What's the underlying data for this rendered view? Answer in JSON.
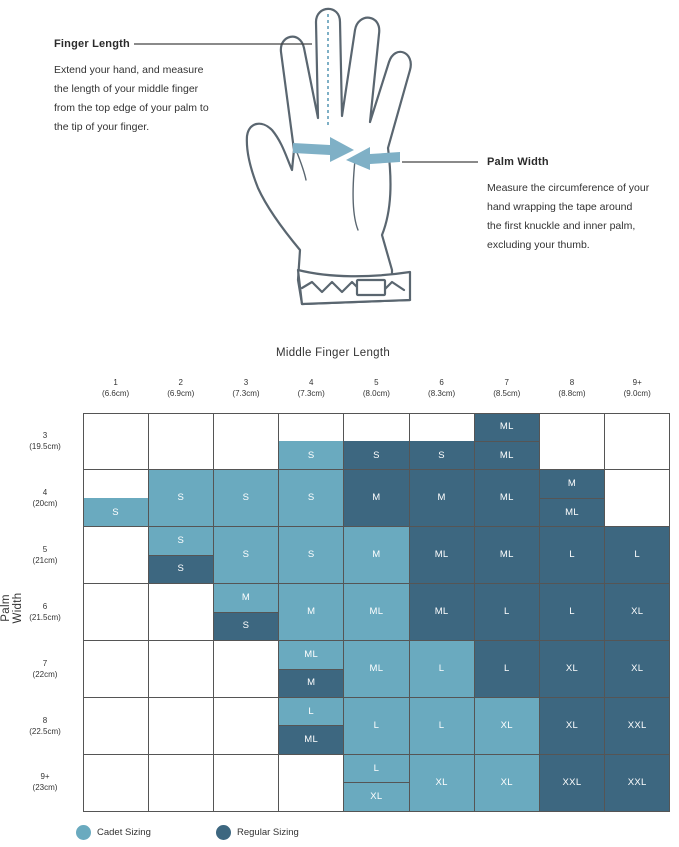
{
  "colors": {
    "cadet": "#6aaabf",
    "regular": "#3d6780",
    "grid": "#555555",
    "arrow": "#7fb0c6"
  },
  "diagram": {
    "finger_length": {
      "title": "Finger Length",
      "lines": [
        "Extend your hand, and measure",
        "the length of your middle finger",
        "from the top edge of your palm to",
        "the tip of your finger."
      ]
    },
    "palm_width": {
      "title": "Palm Width",
      "lines": [
        "Measure the circumference of your",
        "hand wrapping the tape around",
        "the first knuckle and inner palm,",
        "excluding your thumb."
      ]
    }
  },
  "chart_data": {
    "type": "table",
    "x_axis_title": "Middle Finger Length",
    "y_axis_title": "Palm Width",
    "columns": [
      {
        "size": "1",
        "cm": "(6.6cm)"
      },
      {
        "size": "2",
        "cm": "(6.9cm)"
      },
      {
        "size": "3",
        "cm": "(7.3cm)"
      },
      {
        "size": "4",
        "cm": "(7.3cm)"
      },
      {
        "size": "5",
        "cm": "(8.0cm)"
      },
      {
        "size": "6",
        "cm": "(8.3cm)"
      },
      {
        "size": "7",
        "cm": "(8.5cm)"
      },
      {
        "size": "8",
        "cm": "(8.8cm)"
      },
      {
        "size": "9+",
        "cm": "(9.0cm)"
      }
    ],
    "rows": [
      {
        "size": "3",
        "cm": "(19.5cm)"
      },
      {
        "size": "4",
        "cm": "(20cm)"
      },
      {
        "size": "5",
        "cm": "(21cm)"
      },
      {
        "size": "6",
        "cm": "(21.5cm)"
      },
      {
        "size": "7",
        "cm": "(22cm)"
      },
      {
        "size": "8",
        "cm": "(22.5cm)"
      },
      {
        "size": "9+",
        "cm": "(23cm)"
      }
    ],
    "cells": [
      [
        null,
        null,
        null,
        {
          "bottom": {
            "label": "S",
            "type": "cadet"
          }
        },
        {
          "bottom": {
            "label": "S",
            "type": "regular"
          }
        },
        {
          "bottom": {
            "label": "S",
            "type": "regular"
          }
        },
        {
          "top": {
            "label": "ML",
            "type": "regular"
          },
          "bottom": {
            "label": "ML",
            "type": "regular"
          }
        },
        null,
        null
      ],
      [
        {
          "bottom": {
            "label": "S",
            "type": "cadet"
          }
        },
        {
          "label": "S",
          "type": "cadet"
        },
        {
          "label": "S",
          "type": "cadet"
        },
        {
          "label": "S",
          "type": "cadet"
        },
        {
          "label": "M",
          "type": "regular"
        },
        {
          "label": "M",
          "type": "regular"
        },
        {
          "label": "ML",
          "type": "regular"
        },
        {
          "top": {
            "label": "M",
            "type": "regular"
          },
          "bottom": {
            "label": "ML",
            "type": "regular"
          }
        },
        null
      ],
      [
        null,
        {
          "top": {
            "label": "S",
            "type": "cadet"
          },
          "bottom": {
            "label": "S",
            "type": "regular"
          }
        },
        {
          "label": "S",
          "type": "cadet"
        },
        {
          "label": "S",
          "type": "cadet"
        },
        {
          "label": "M",
          "type": "cadet"
        },
        {
          "label": "ML",
          "type": "regular"
        },
        {
          "label": "ML",
          "type": "regular"
        },
        {
          "label": "L",
          "type": "regular"
        },
        {
          "label": "L",
          "type": "regular"
        }
      ],
      [
        null,
        null,
        {
          "top": {
            "label": "M",
            "type": "cadet"
          },
          "bottom": {
            "label": "S",
            "type": "regular"
          }
        },
        {
          "label": "M",
          "type": "cadet"
        },
        {
          "label": "ML",
          "type": "cadet"
        },
        {
          "label": "ML",
          "type": "regular"
        },
        {
          "label": "L",
          "type": "regular"
        },
        {
          "label": "L",
          "type": "regular"
        },
        {
          "label": "XL",
          "type": "regular"
        }
      ],
      [
        null,
        null,
        null,
        {
          "top": {
            "label": "ML",
            "type": "cadet"
          },
          "bottom": {
            "label": "M",
            "type": "regular"
          }
        },
        {
          "label": "ML",
          "type": "cadet"
        },
        {
          "label": "L",
          "type": "cadet"
        },
        {
          "label": "L",
          "type": "regular"
        },
        {
          "label": "XL",
          "type": "regular"
        },
        {
          "label": "XL",
          "type": "regular"
        }
      ],
      [
        null,
        null,
        null,
        {
          "top": {
            "label": "L",
            "type": "cadet"
          },
          "bottom": {
            "label": "ML",
            "type": "regular"
          }
        },
        {
          "label": "L",
          "type": "cadet"
        },
        {
          "label": "L",
          "type": "cadet"
        },
        {
          "label": "XL",
          "type": "cadet"
        },
        {
          "label": "XL",
          "type": "regular"
        },
        {
          "label": "XXL",
          "type": "regular"
        }
      ],
      [
        null,
        null,
        null,
        null,
        {
          "top": {
            "label": "L",
            "type": "cadet"
          },
          "bottom": {
            "label": "XL",
            "type": "cadet"
          }
        },
        {
          "label": "XL",
          "type": "cadet"
        },
        {
          "label": "XL",
          "type": "cadet"
        },
        {
          "label": "XXL",
          "type": "regular"
        },
        {
          "label": "XXL",
          "type": "regular"
        }
      ]
    ],
    "legend": [
      {
        "label": "Cadet Sizing",
        "type": "cadet"
      },
      {
        "label": "Regular Sizing",
        "type": "regular"
      }
    ]
  }
}
